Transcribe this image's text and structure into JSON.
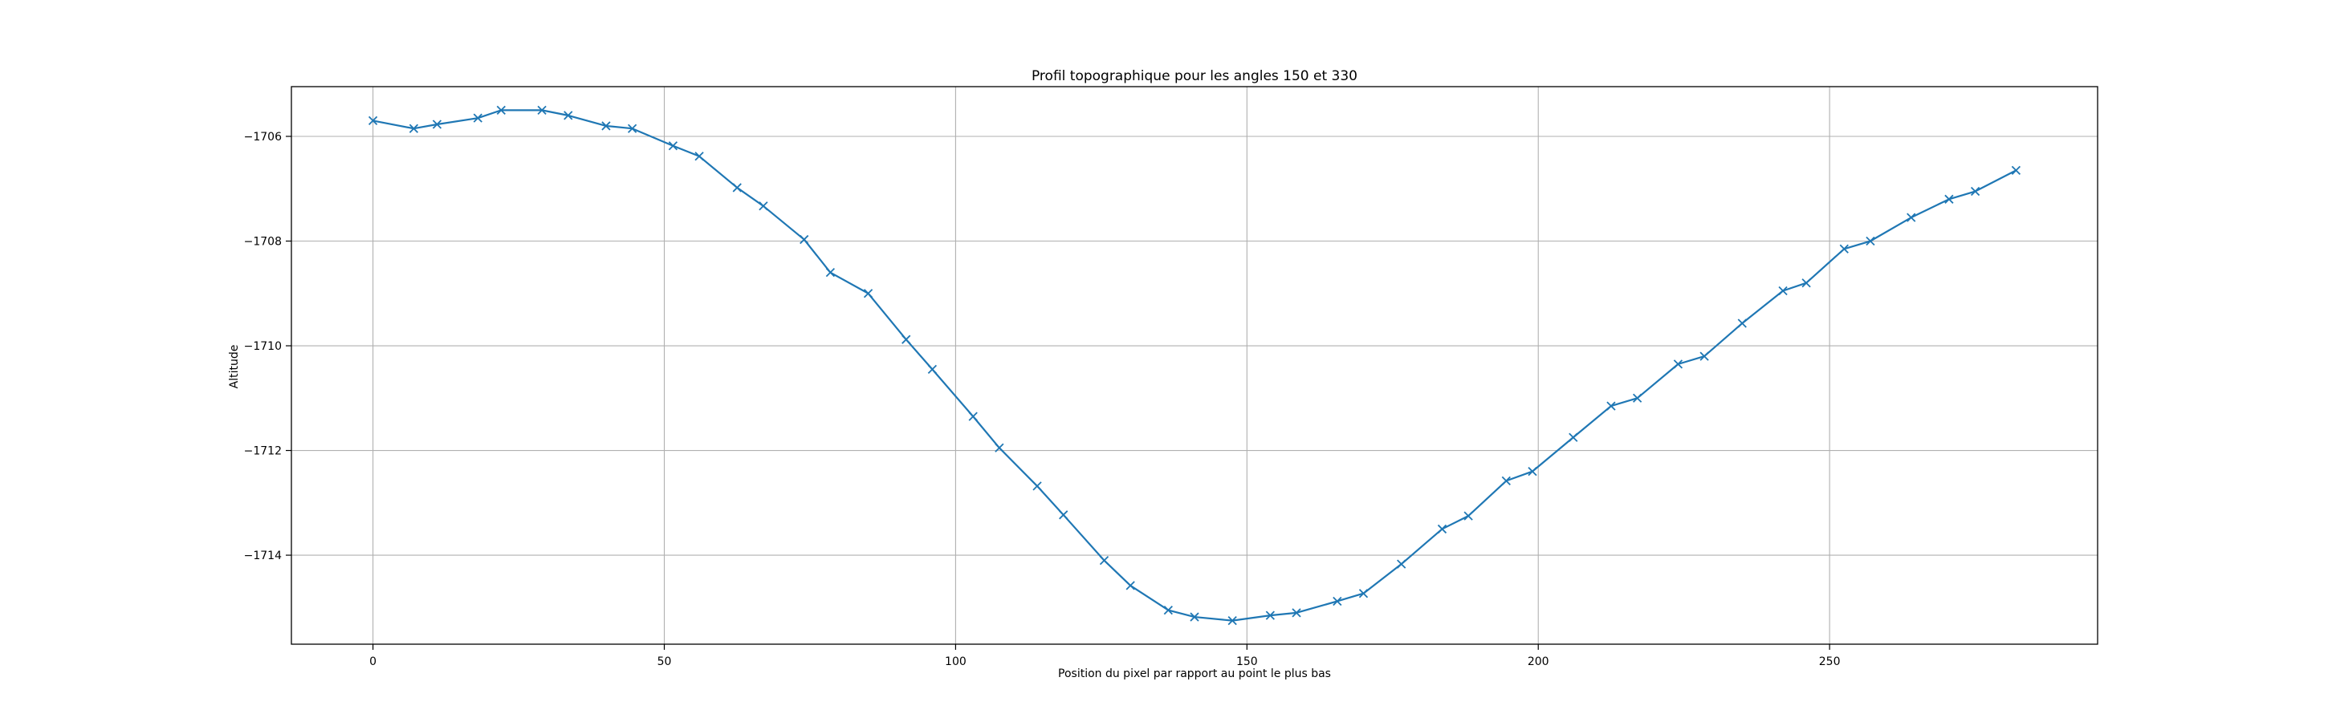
{
  "chart_data": {
    "type": "line",
    "title": "Profil topographique pour les angles 150 et 330",
    "xlabel": "Position du pixel par rapport au point le plus bas",
    "ylabel": "Altitude",
    "xlim": [
      -14,
      296
    ],
    "ylim": [
      -1715.7,
      -1705.05
    ],
    "xticks": [
      0,
      50,
      100,
      150,
      200,
      250
    ],
    "yticks": [
      -1714,
      -1712,
      -1710,
      -1708,
      -1706
    ],
    "ytick_labels": [
      "−1714",
      "−1712",
      "−1710",
      "−1708",
      "−1706"
    ],
    "grid": true,
    "marker": "x",
    "series": [
      {
        "color": "#1f77b4",
        "x": [
          0,
          7,
          11,
          18,
          22,
          29,
          33.5,
          40,
          44.5,
          51.5,
          56,
          62.5,
          67,
          74,
          78.5,
          85,
          91.5,
          96,
          103,
          107.5,
          114,
          118.5,
          125.5,
          130,
          136.5,
          141,
          147.5,
          154,
          158.5,
          165.5,
          170,
          176.5,
          183.5,
          188,
          194.5,
          199,
          206,
          212.5,
          217,
          224,
          228.5,
          235,
          242,
          246,
          252.5,
          257,
          264,
          270.5,
          275,
          282
        ],
        "y": [
          -1705.7,
          -1705.85,
          -1705.77,
          -1705.65,
          -1705.5,
          -1705.5,
          -1705.6,
          -1705.8,
          -1705.85,
          -1706.18,
          -1706.38,
          -1706.98,
          -1707.33,
          -1707.97,
          -1708.6,
          -1709.0,
          -1709.88,
          -1710.45,
          -1711.35,
          -1711.95,
          -1712.68,
          -1713.23,
          -1714.1,
          -1714.58,
          -1715.05,
          -1715.18,
          -1715.25,
          -1715.15,
          -1715.1,
          -1714.88,
          -1714.73,
          -1714.17,
          -1713.5,
          -1713.25,
          -1712.58,
          -1712.4,
          -1711.75,
          -1711.15,
          -1711.0,
          -1710.35,
          -1710.2,
          -1709.57,
          -1708.95,
          -1708.8,
          -1708.15,
          -1708.0,
          -1707.55,
          -1707.2,
          -1707.05,
          -1706.65
        ]
      }
    ]
  }
}
